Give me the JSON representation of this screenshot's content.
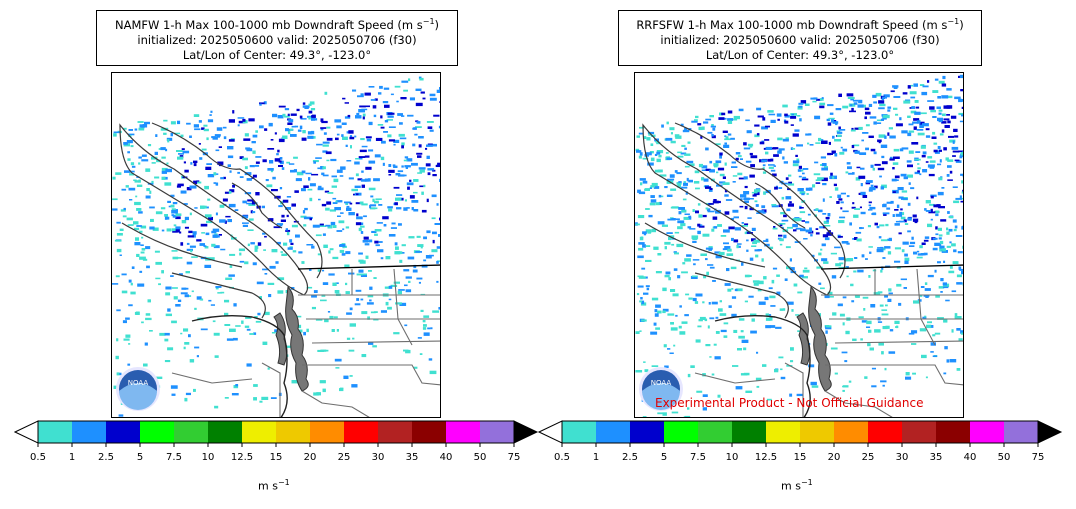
{
  "panels": [
    {
      "title_line1": "NAMFW 1-h Max 100-1000 mb Downdraft Speed (m s",
      "title_sup": "−1",
      "title_close": ")",
      "title_line2": "initialized: 2025050600 valid: 2025050706 (f30)",
      "title_line3": "Lat/Lon of Center: 49.3°, -123.0°",
      "logo_text": "NOAA"
    },
    {
      "title_line1": "RRFSFW 1-h Max 100-1000 mb Downdraft Speed (m s",
      "title_sup": "−1",
      "title_close": ")",
      "title_line2": "initialized: 2025050600 valid: 2025050706 (f30)",
      "title_line3": "Lat/Lon of Center: 49.3°, -123.0°",
      "logo_text": "NOAA"
    }
  ],
  "colorbar": {
    "ticks": [
      "0.5",
      "1",
      "2.5",
      "5",
      "7.5",
      "10",
      "12.5",
      "15",
      "20",
      "25",
      "30",
      "35",
      "40",
      "50",
      "75"
    ],
    "colors": [
      "#40e0d0",
      "#1e90ff",
      "#0000cd",
      "#00ff00",
      "#32cd32",
      "#008000",
      "#eeee00",
      "#eec900",
      "#ff8c00",
      "#ff0000",
      "#b22222",
      "#8b0000",
      "#ff00ff",
      "#9370db"
    ],
    "under_color": "#ffffff",
    "over_color": "#000000",
    "units": "m s",
    "units_sup": "−1"
  },
  "disclaimer": "Experimental Product - Not Official Guidance",
  "chart_data": {
    "type": "heatmap",
    "variable": "1-h Max 100-1000 mb Downdraft Speed",
    "units": "m s-1",
    "levels": [
      0.5,
      1,
      2.5,
      5,
      7.5,
      10,
      12.5,
      15,
      20,
      25,
      30,
      35,
      40,
      50,
      75
    ],
    "extend": "both",
    "center_lat": 49.3,
    "center_lon": -123.0,
    "initialized": "2025050600",
    "valid": "2025050706",
    "forecast_hour": 30,
    "models": [
      "NAMFW",
      "RRFSFW"
    ]
  }
}
